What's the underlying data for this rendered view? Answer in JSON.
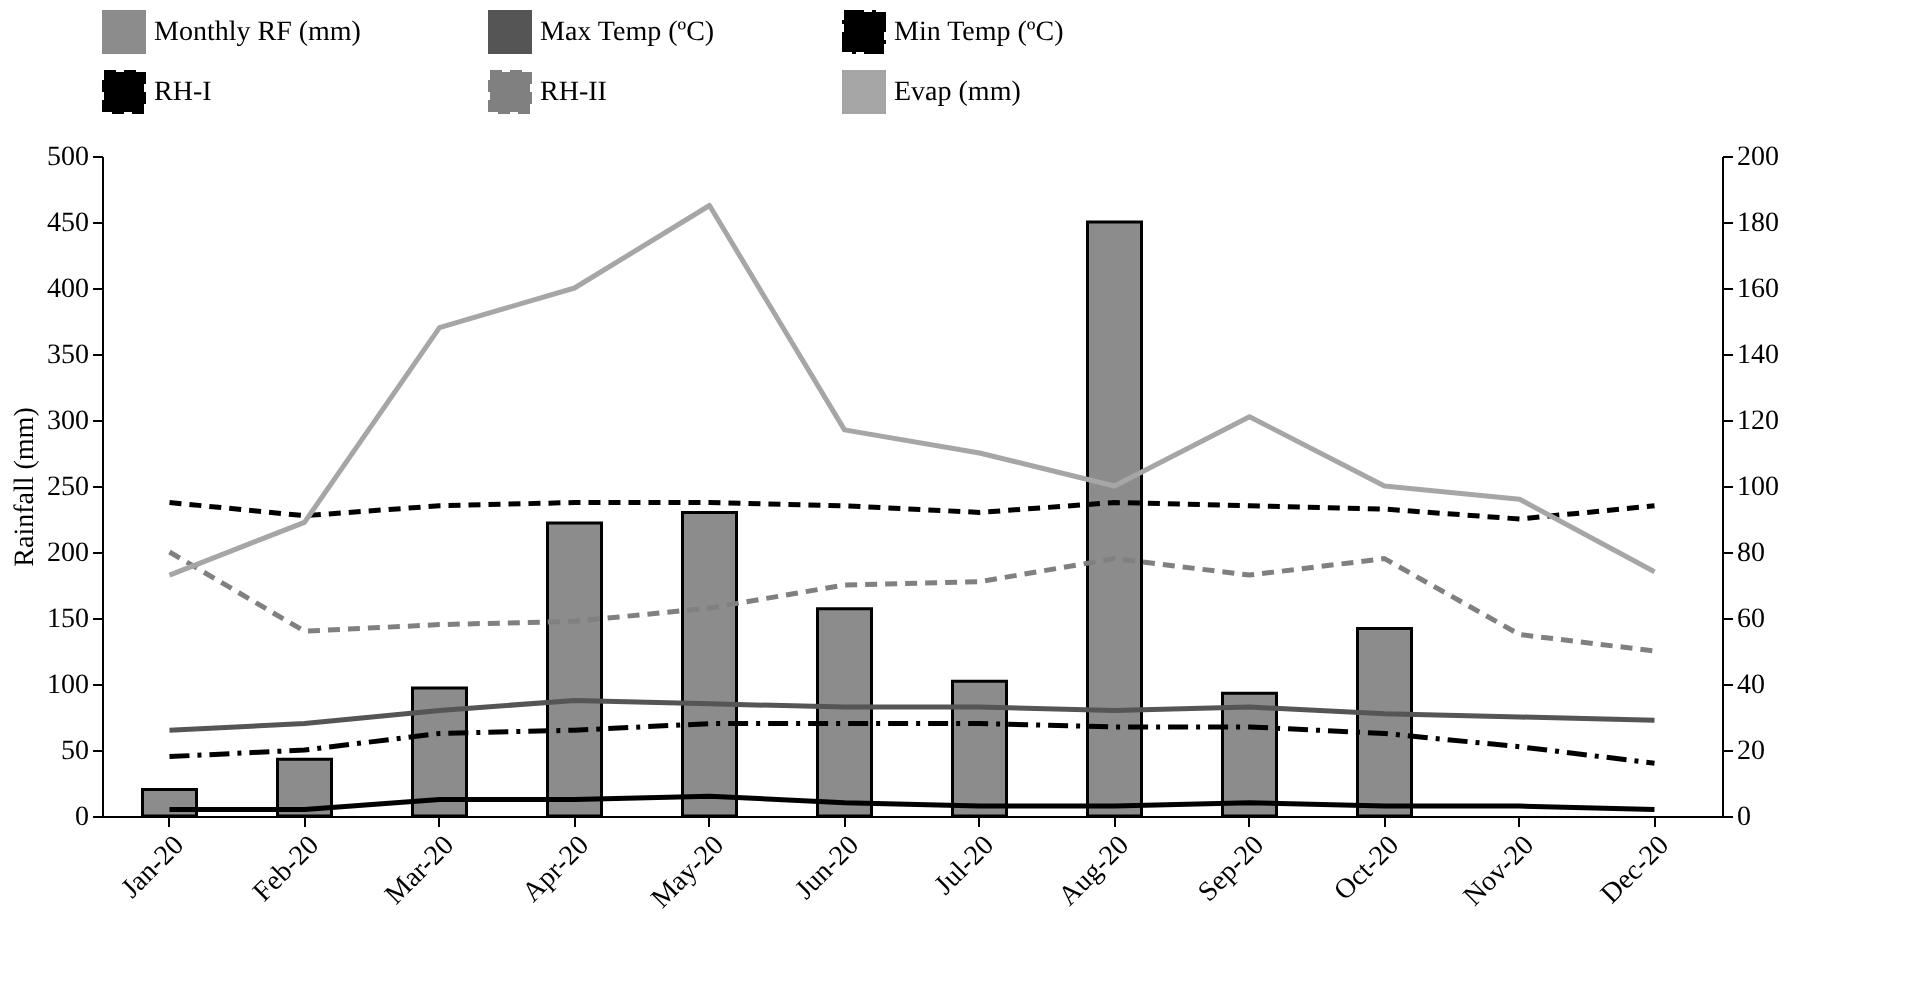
{
  "chart_data": {
    "type": "bar",
    "ylabel": "Rainfall (mm)",
    "categories": [
      "Jan-20",
      "Feb-20",
      "Mar-20",
      "Apr-20",
      "May-20",
      "Jun-20",
      "Jul-20",
      "Aug-20",
      "Sep-20",
      "Oct-20",
      "Nov-20",
      "Dec-20"
    ],
    "ylim": [
      0,
      500
    ],
    "yticks": [
      0,
      50,
      100,
      150,
      200,
      250,
      300,
      350,
      400,
      450,
      500
    ],
    "y2lim": [
      0,
      200
    ],
    "y2ticks": [
      0,
      20,
      40,
      60,
      80,
      100,
      120,
      140,
      160,
      180,
      200
    ],
    "grid": false,
    "legend": "top",
    "series": [
      {
        "name": "Monthly RF (mm)",
        "color": "#8c8c8c",
        "values": [
          20,
          43,
          97,
          222,
          230,
          157,
          102,
          450,
          93,
          142,
          null,
          null
        ]
      },
      {
        "name": "Max Temp (ºC)",
        "type": "line",
        "axis": "y2",
        "color": "#555555",
        "line_style": "solid",
        "values": [
          26,
          28,
          32,
          35,
          34,
          33,
          33,
          32,
          33,
          31,
          30,
          29
        ]
      },
      {
        "name": "Min Temp (ºC)",
        "type": "line",
        "axis": "y2",
        "color": "#000000",
        "line_style": "dashdot",
        "values": [
          18,
          20,
          25,
          26,
          28,
          28,
          28,
          27,
          27,
          25,
          21,
          16
        ]
      },
      {
        "name": "RH-I",
        "type": "line",
        "axis": "y2",
        "color": "#000000",
        "line_style": "dashed",
        "values": [
          95,
          91,
          94,
          95,
          95,
          94,
          92,
          95,
          94,
          93,
          90,
          94
        ]
      },
      {
        "name": "RH-II",
        "type": "line",
        "axis": "y2",
        "color": "#808080",
        "line_style": "dashed",
        "values": [
          80,
          56,
          58,
          59,
          63,
          70,
          71,
          78,
          73,
          78,
          55,
          50
        ]
      },
      {
        "name": "Evap (mm)",
        "type": "line",
        "axis": "y2",
        "color": "#a6a6a6",
        "line_style": "solid",
        "values": [
          73,
          89,
          148,
          160,
          185,
          117,
          110,
          100,
          121,
          100,
          96,
          74
        ]
      },
      {
        "type": "line",
        "axis": "y2",
        "color": "#000000",
        "line_style": "solid",
        "values": [
          2,
          2,
          5,
          5,
          6,
          4,
          3,
          3,
          4,
          3,
          3,
          2
        ]
      }
    ]
  }
}
